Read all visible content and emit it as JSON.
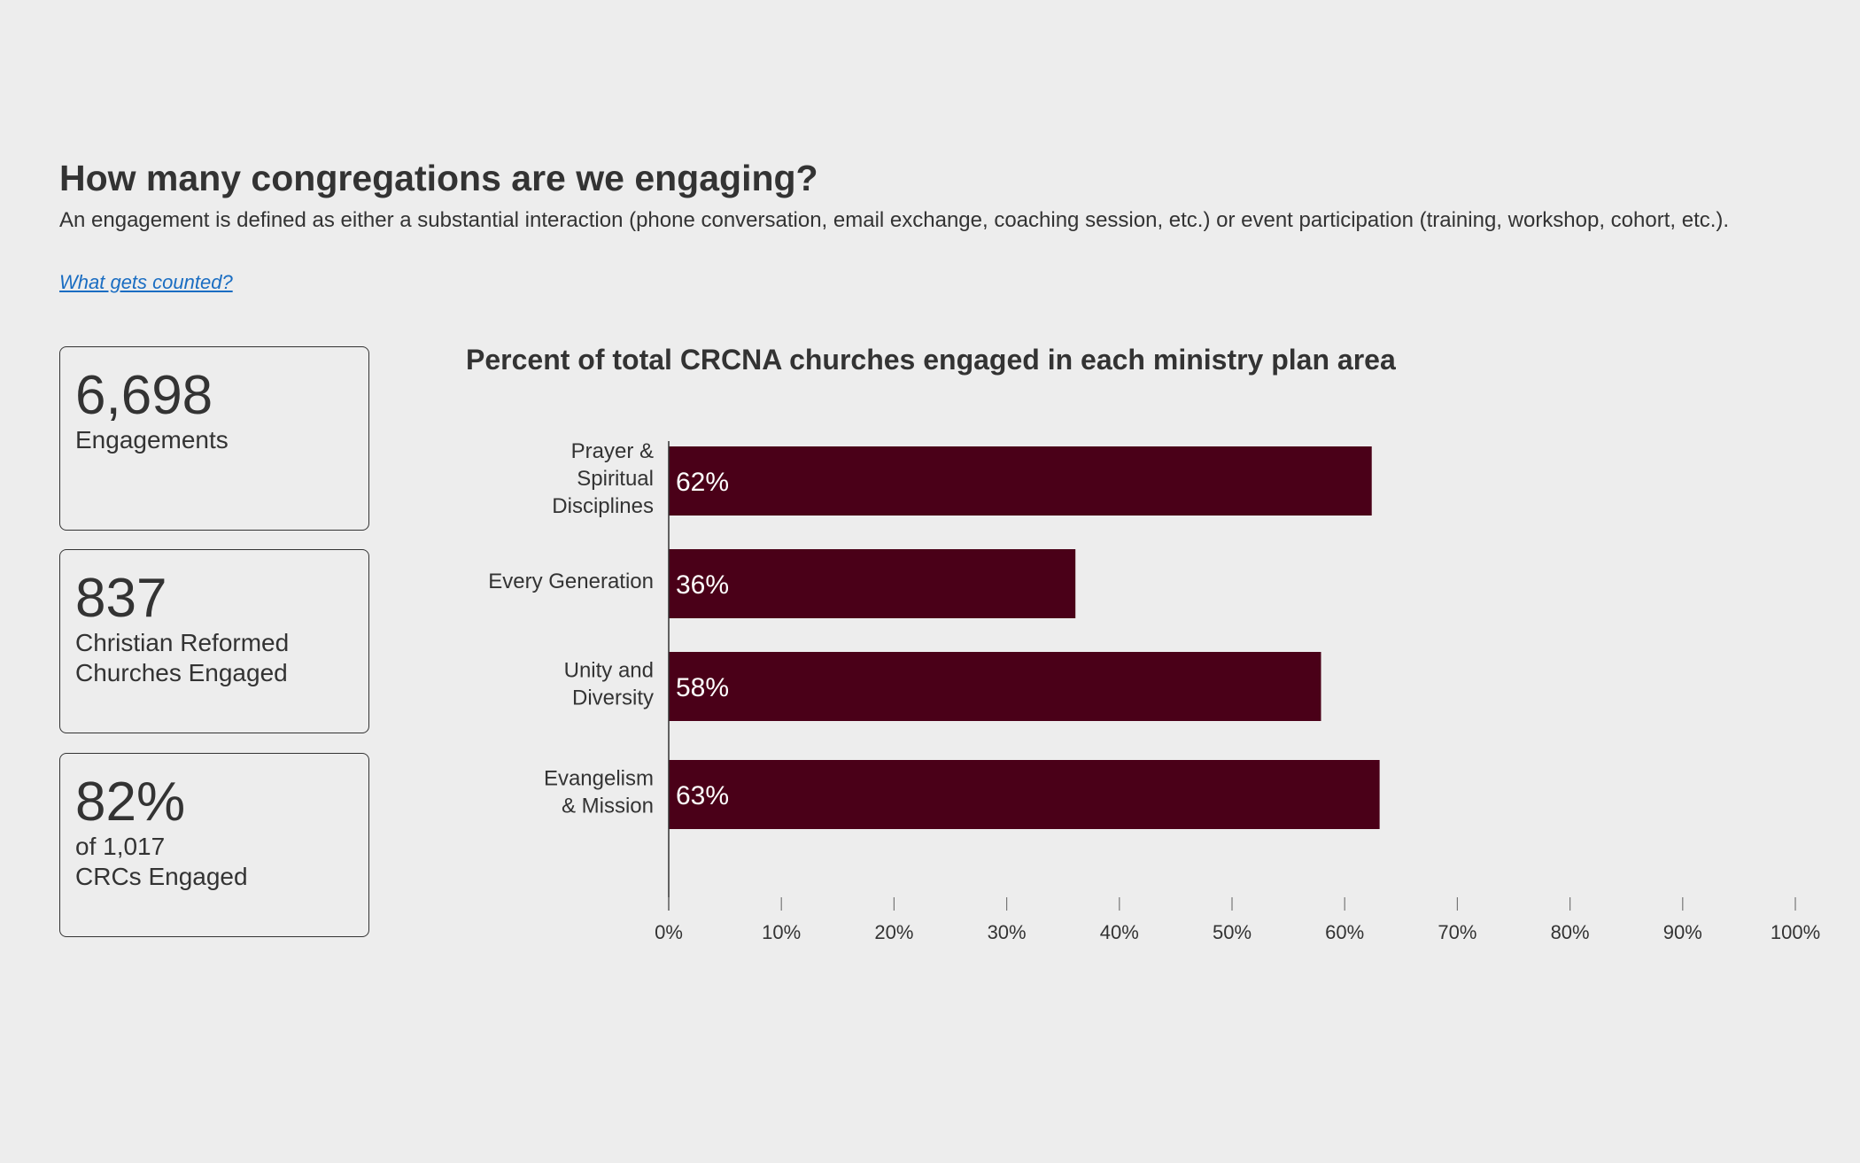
{
  "header": {
    "title": "How many congregations are we engaging?",
    "description": "An engagement is defined as either a substantial interaction (phone conversation, email exchange, coaching session, etc.) or event participation (training, workshop, cohort, etc.).",
    "link_label": "What gets counted?"
  },
  "cards": [
    {
      "value": "6,698",
      "label_lines": [
        "Engagements"
      ]
    },
    {
      "value": "837",
      "label_lines": [
        "Christian Reformed",
        "Churches Engaged"
      ]
    },
    {
      "value": "82%",
      "sub": "of 1,017",
      "label_lines": [
        "CRCs Engaged"
      ]
    }
  ],
  "colors": {
    "bar": "#4a0018",
    "bar_label": "#ffffff",
    "text": "#333333",
    "link": "#1a6dc2",
    "background": "#ededed"
  },
  "chart_data": {
    "type": "bar",
    "orientation": "horizontal",
    "title": "Percent of total CRCNA churches engaged in each ministry plan area",
    "categories": [
      [
        "Prayer &",
        "Spiritual",
        "Disciplines"
      ],
      [
        "Every Generation"
      ],
      [
        "Unity and",
        "Diversity"
      ],
      [
        "Evangelism",
        "& Mission"
      ]
    ],
    "values": [
      62.4,
      36.1,
      57.9,
      63.1
    ],
    "value_labels": [
      "62%",
      "36%",
      "58%",
      "63%"
    ],
    "xlim": [
      0,
      100
    ],
    "xticks": [
      0,
      10,
      20,
      30,
      40,
      50,
      60,
      70,
      80,
      90,
      100
    ],
    "xtick_labels": [
      "0%",
      "10%",
      "20%",
      "30%",
      "40%",
      "50%",
      "60%",
      "70%",
      "80%",
      "90%",
      "100%"
    ],
    "xlabel": "",
    "ylabel": "",
    "grid": false,
    "legend": "none"
  }
}
